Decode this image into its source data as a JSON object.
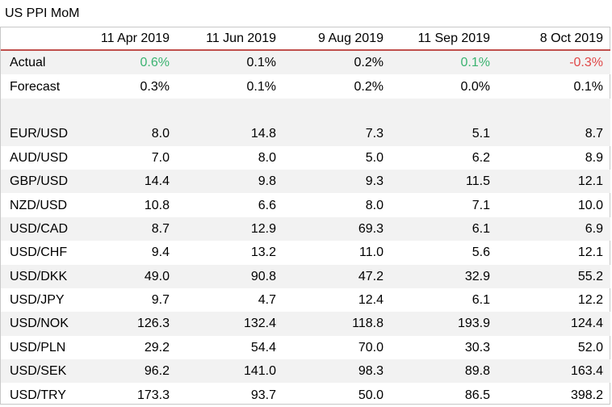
{
  "title": "US PPI MoM",
  "colors": {
    "accent_line": "#c0504d",
    "positive": "#3cb371",
    "negative": "#e04848",
    "shade": "#f2f2f2"
  },
  "chart_data": {
    "type": "table",
    "title": "US PPI MoM",
    "columns": [
      "11 Apr 2019",
      "11 Jun 2019",
      "9 Aug 2019",
      "11 Sep 2019",
      "8 Oct 2019"
    ],
    "actual": {
      "label": "Actual",
      "values": [
        "0.6%",
        "0.1%",
        "0.2%",
        "0.1%",
        "-0.3%"
      ],
      "tones": [
        "pos",
        "",
        "",
        "pos",
        "neg"
      ]
    },
    "forecast": {
      "label": "Forecast",
      "values": [
        "0.3%",
        "0.1%",
        "0.2%",
        "0.0%",
        "0.1%"
      ]
    },
    "pairs": [
      {
        "label": "EUR/USD",
        "values": [
          "8.0",
          "14.8",
          "7.3",
          "5.1",
          "8.7"
        ]
      },
      {
        "label": "AUD/USD",
        "values": [
          "7.0",
          "8.0",
          "5.0",
          "6.2",
          "8.9"
        ]
      },
      {
        "label": "GBP/USD",
        "values": [
          "14.4",
          "9.8",
          "9.3",
          "11.5",
          "12.1"
        ]
      },
      {
        "label": "NZD/USD",
        "values": [
          "10.8",
          "6.6",
          "8.0",
          "7.1",
          "10.0"
        ]
      },
      {
        "label": "USD/CAD",
        "values": [
          "8.7",
          "12.9",
          "69.3",
          "6.1",
          "6.9"
        ]
      },
      {
        "label": "USD/CHF",
        "values": [
          "9.4",
          "13.2",
          "11.0",
          "5.6",
          "12.1"
        ]
      },
      {
        "label": "USD/DKK",
        "values": [
          "49.0",
          "90.8",
          "47.2",
          "32.9",
          "55.2"
        ]
      },
      {
        "label": "USD/JPY",
        "values": [
          "9.7",
          "4.7",
          "12.4",
          "6.1",
          "12.2"
        ]
      },
      {
        "label": "USD/NOK",
        "values": [
          "126.3",
          "132.4",
          "118.8",
          "193.9",
          "124.4"
        ]
      },
      {
        "label": "USD/PLN",
        "values": [
          "29.2",
          "54.4",
          "70.0",
          "30.3",
          "52.0"
        ]
      },
      {
        "label": "USD/SEK",
        "values": [
          "96.2",
          "141.0",
          "98.3",
          "89.8",
          "163.4"
        ]
      },
      {
        "label": "USD/TRY",
        "values": [
          "173.3",
          "93.7",
          "50.0",
          "86.5",
          "398.2"
        ]
      }
    ]
  }
}
